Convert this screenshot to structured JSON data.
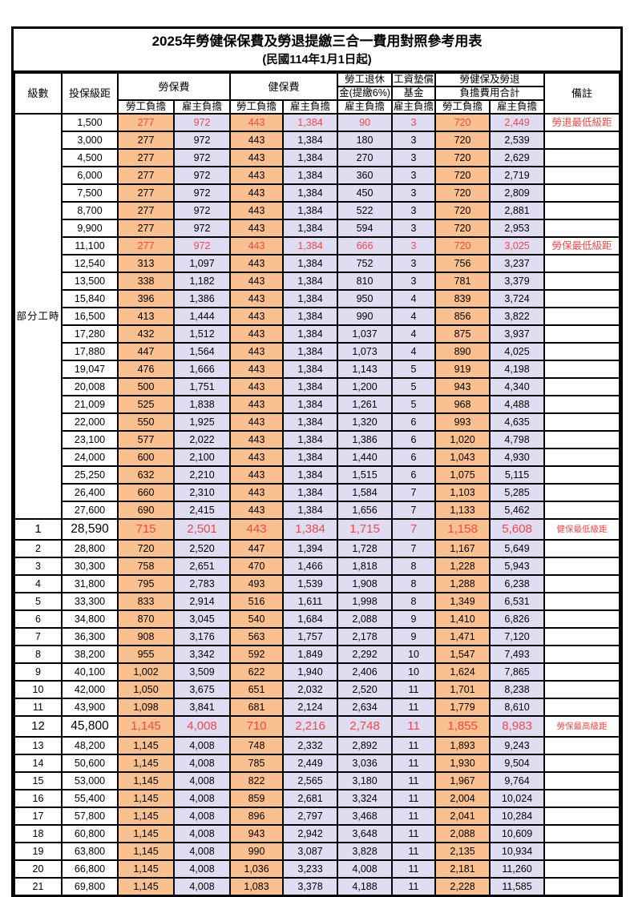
{
  "title": "2025年勞健保保費及勞退提繳三合一費用對照參考用表",
  "subtitle": "(民國114年1月1日起)",
  "header": {
    "level": "級數",
    "insured_bracket": "投保級距",
    "labor_fee": "勞保費",
    "health_fee": "健保費",
    "pension_line1": "勞工退休",
    "pension_line2": "金(提繳6%)",
    "wage_fund_line1": "工資墊償",
    "wage_fund_line2": "基金",
    "total_line1": "勞健保及勞退",
    "total_line2": "負擔費用合計",
    "note": "備註",
    "employee_burden": "勞工負擔",
    "employer_burden": "雇主負擔"
  },
  "colors": {
    "employee_column_bg": "#FAC090",
    "employer_column_bg": "#E0DDF2",
    "highlight_red": "#F2484B",
    "border": "#000000"
  },
  "table": {
    "part_time_label": "部分工時",
    "part_time_span": 23,
    "columns_order": [
      "level",
      "insured_bracket",
      "labor_employee",
      "labor_employer",
      "health_employee",
      "health_employer",
      "pension_employer",
      "wage_fund_employer",
      "total_employee",
      "total_employer",
      "note"
    ],
    "red_row_indexes": [
      0,
      7,
      23,
      34
    ],
    "big_row_indexes": [
      23,
      34
    ],
    "rows": [
      [
        "",
        "1,500",
        "277",
        "972",
        "443",
        "1,384",
        "90",
        "3",
        "720",
        "2,449",
        "勞退最低級距"
      ],
      [
        "",
        "3,000",
        "277",
        "972",
        "443",
        "1,384",
        "180",
        "3",
        "720",
        "2,539",
        ""
      ],
      [
        "",
        "4,500",
        "277",
        "972",
        "443",
        "1,384",
        "270",
        "3",
        "720",
        "2,629",
        ""
      ],
      [
        "",
        "6,000",
        "277",
        "972",
        "443",
        "1,384",
        "360",
        "3",
        "720",
        "2,719",
        ""
      ],
      [
        "",
        "7,500",
        "277",
        "972",
        "443",
        "1,384",
        "450",
        "3",
        "720",
        "2,809",
        ""
      ],
      [
        "",
        "8,700",
        "277",
        "972",
        "443",
        "1,384",
        "522",
        "3",
        "720",
        "2,881",
        ""
      ],
      [
        "",
        "9,900",
        "277",
        "972",
        "443",
        "1,384",
        "594",
        "3",
        "720",
        "2,953",
        ""
      ],
      [
        "",
        "11,100",
        "277",
        "972",
        "443",
        "1,384",
        "666",
        "3",
        "720",
        "3,025",
        "勞保最低級距"
      ],
      [
        "",
        "12,540",
        "313",
        "1,097",
        "443",
        "1,384",
        "752",
        "3",
        "756",
        "3,237",
        ""
      ],
      [
        "",
        "13,500",
        "338",
        "1,182",
        "443",
        "1,384",
        "810",
        "3",
        "781",
        "3,379",
        ""
      ],
      [
        "",
        "15,840",
        "396",
        "1,386",
        "443",
        "1,384",
        "950",
        "4",
        "839",
        "3,724",
        ""
      ],
      [
        "",
        "16,500",
        "413",
        "1,444",
        "443",
        "1,384",
        "990",
        "4",
        "856",
        "3,822",
        ""
      ],
      [
        "",
        "17,280",
        "432",
        "1,512",
        "443",
        "1,384",
        "1,037",
        "4",
        "875",
        "3,937",
        ""
      ],
      [
        "",
        "17,880",
        "447",
        "1,564",
        "443",
        "1,384",
        "1,073",
        "4",
        "890",
        "4,025",
        ""
      ],
      [
        "",
        "19,047",
        "476",
        "1,666",
        "443",
        "1,384",
        "1,143",
        "5",
        "919",
        "4,198",
        ""
      ],
      [
        "",
        "20,008",
        "500",
        "1,751",
        "443",
        "1,384",
        "1,200",
        "5",
        "943",
        "4,340",
        ""
      ],
      [
        "",
        "21,009",
        "525",
        "1,838",
        "443",
        "1,384",
        "1,261",
        "5",
        "968",
        "4,488",
        ""
      ],
      [
        "",
        "22,000",
        "550",
        "1,925",
        "443",
        "1,384",
        "1,320",
        "6",
        "993",
        "4,635",
        ""
      ],
      [
        "",
        "23,100",
        "577",
        "2,022",
        "443",
        "1,384",
        "1,386",
        "6",
        "1,020",
        "4,798",
        ""
      ],
      [
        "",
        "24,000",
        "600",
        "2,100",
        "443",
        "1,384",
        "1,440",
        "6",
        "1,043",
        "4,930",
        ""
      ],
      [
        "",
        "25,250",
        "632",
        "2,210",
        "443",
        "1,384",
        "1,515",
        "6",
        "1,075",
        "5,115",
        ""
      ],
      [
        "",
        "26,400",
        "660",
        "2,310",
        "443",
        "1,384",
        "1,584",
        "7",
        "1,103",
        "5,285",
        ""
      ],
      [
        "",
        "27,600",
        "690",
        "2,415",
        "443",
        "1,384",
        "1,656",
        "7",
        "1,133",
        "5,462",
        ""
      ],
      [
        "1",
        "28,590",
        "715",
        "2,501",
        "443",
        "1,384",
        "1,715",
        "7",
        "1,158",
        "5,608",
        "健保最低級距"
      ],
      [
        "2",
        "28,800",
        "720",
        "2,520",
        "447",
        "1,394",
        "1,728",
        "7",
        "1,167",
        "5,649",
        ""
      ],
      [
        "3",
        "30,300",
        "758",
        "2,651",
        "470",
        "1,466",
        "1,818",
        "8",
        "1,228",
        "5,943",
        ""
      ],
      [
        "4",
        "31,800",
        "795",
        "2,783",
        "493",
        "1,539",
        "1,908",
        "8",
        "1,288",
        "6,238",
        ""
      ],
      [
        "5",
        "33,300",
        "833",
        "2,914",
        "516",
        "1,611",
        "1,998",
        "8",
        "1,349",
        "6,531",
        ""
      ],
      [
        "6",
        "34,800",
        "870",
        "3,045",
        "540",
        "1,684",
        "2,088",
        "9",
        "1,410",
        "6,826",
        ""
      ],
      [
        "7",
        "36,300",
        "908",
        "3,176",
        "563",
        "1,757",
        "2,178",
        "9",
        "1,471",
        "7,120",
        ""
      ],
      [
        "8",
        "38,200",
        "955",
        "3,342",
        "592",
        "1,849",
        "2,292",
        "10",
        "1,547",
        "7,493",
        ""
      ],
      [
        "9",
        "40,100",
        "1,002",
        "3,509",
        "622",
        "1,940",
        "2,406",
        "10",
        "1,624",
        "7,865",
        ""
      ],
      [
        "10",
        "42,000",
        "1,050",
        "3,675",
        "651",
        "2,032",
        "2,520",
        "11",
        "1,701",
        "8,238",
        ""
      ],
      [
        "11",
        "43,900",
        "1,098",
        "3,841",
        "681",
        "2,124",
        "2,634",
        "11",
        "1,779",
        "8,610",
        ""
      ],
      [
        "12",
        "45,800",
        "1,145",
        "4,008",
        "710",
        "2,216",
        "2,748",
        "11",
        "1,855",
        "8,983",
        "勞保最高級距"
      ],
      [
        "13",
        "48,200",
        "1,145",
        "4,008",
        "748",
        "2,332",
        "2,892",
        "11",
        "1,893",
        "9,243",
        ""
      ],
      [
        "14",
        "50,600",
        "1,145",
        "4,008",
        "785",
        "2,449",
        "3,036",
        "11",
        "1,930",
        "9,504",
        ""
      ],
      [
        "15",
        "53,000",
        "1,145",
        "4,008",
        "822",
        "2,565",
        "3,180",
        "11",
        "1,967",
        "9,764",
        ""
      ],
      [
        "16",
        "55,400",
        "1,145",
        "4,008",
        "859",
        "2,681",
        "3,324",
        "11",
        "2,004",
        "10,024",
        ""
      ],
      [
        "17",
        "57,800",
        "1,145",
        "4,008",
        "896",
        "2,797",
        "3,468",
        "11",
        "2,041",
        "10,284",
        ""
      ],
      [
        "18",
        "60,800",
        "1,145",
        "4,008",
        "943",
        "2,942",
        "3,648",
        "11",
        "2,088",
        "10,609",
        ""
      ],
      [
        "19",
        "63,800",
        "1,145",
        "4,008",
        "990",
        "3,087",
        "3,828",
        "11",
        "2,135",
        "10,934",
        ""
      ],
      [
        "20",
        "66,800",
        "1,145",
        "4,008",
        "1,036",
        "3,233",
        "4,008",
        "11",
        "2,181",
        "11,260",
        ""
      ],
      [
        "21",
        "69,800",
        "1,145",
        "4,008",
        "1,083",
        "3,378",
        "4,188",
        "11",
        "2,228",
        "11,585",
        ""
      ]
    ]
  }
}
